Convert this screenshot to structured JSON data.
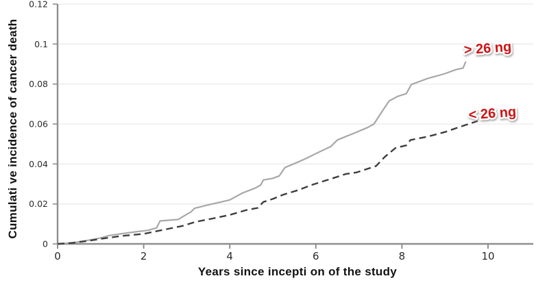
{
  "colors": {
    "background": "#ffffff",
    "grid": "#ededed",
    "axis": "#8e8e8e",
    "tick_text": "#2b2b2b",
    "title_text": "#111111",
    "annotation_red": "#cc1111",
    "series_gray": "#a7a7a7",
    "series_dark": "#3d3d3d"
  },
  "chart_data": {
    "type": "line",
    "title": "",
    "xlabel": "Years since incepti on of the study",
    "ylabel": "Cumulati ve incidence of cancer death",
    "xlim": [
      0,
      11.05
    ],
    "ylim": [
      0,
      0.12
    ],
    "xticks": [
      0,
      2,
      4,
      6,
      8,
      10
    ],
    "xtick_labels": [
      "0",
      "2",
      "4",
      "6",
      "8",
      "10"
    ],
    "yticks": [
      0,
      0.02,
      0.04,
      0.06,
      0.08,
      0.1,
      0.12
    ],
    "ytick_labels": [
      "0",
      "0.02",
      "0.04",
      "0.06",
      "0.08",
      "0.1",
      "0.12"
    ],
    "grid": "horizontal-only",
    "legend_position": "end-of-line-annotations",
    "series": [
      {
        "name": "> 26 ng",
        "style": "solid",
        "color": "#a7a7a7",
        "label_color": "#cc1111",
        "annotation": {
          "x": 10.0,
          "y": 0.0956,
          "rotate": -4
        },
        "points": [
          [
            0,
            0
          ],
          [
            0.35,
            0.0005
          ],
          [
            0.7,
            0.0018
          ],
          [
            1.0,
            0.003
          ],
          [
            1.2,
            0.0042
          ],
          [
            1.45,
            0.005
          ],
          [
            1.8,
            0.006
          ],
          [
            2.1,
            0.0068
          ],
          [
            2.3,
            0.008
          ],
          [
            2.38,
            0.0115
          ],
          [
            2.8,
            0.0122
          ],
          [
            3.0,
            0.0148
          ],
          [
            3.1,
            0.016
          ],
          [
            3.18,
            0.0178
          ],
          [
            3.5,
            0.0195
          ],
          [
            3.8,
            0.021
          ],
          [
            4.0,
            0.022
          ],
          [
            4.3,
            0.0255
          ],
          [
            4.6,
            0.028
          ],
          [
            4.72,
            0.0295
          ],
          [
            4.78,
            0.032
          ],
          [
            5.0,
            0.0328
          ],
          [
            5.15,
            0.034
          ],
          [
            5.28,
            0.0382
          ],
          [
            5.5,
            0.0402
          ],
          [
            5.75,
            0.0425
          ],
          [
            6.0,
            0.0452
          ],
          [
            6.35,
            0.0488
          ],
          [
            6.5,
            0.052
          ],
          [
            6.9,
            0.0555
          ],
          [
            7.2,
            0.0582
          ],
          [
            7.35,
            0.06
          ],
          [
            7.5,
            0.065
          ],
          [
            7.7,
            0.0715
          ],
          [
            7.9,
            0.0738
          ],
          [
            8.1,
            0.0752
          ],
          [
            8.22,
            0.0798
          ],
          [
            8.6,
            0.0828
          ],
          [
            9.0,
            0.0852
          ],
          [
            9.25,
            0.0872
          ],
          [
            9.42,
            0.088
          ],
          [
            9.48,
            0.091
          ]
        ]
      },
      {
        "name": "< 26 ng",
        "style": "dashed",
        "color": "#3d3d3d",
        "label_color": "#cc1111",
        "annotation": {
          "x": 10.11,
          "y": 0.0631,
          "rotate": -4
        },
        "points": [
          [
            0,
            0
          ],
          [
            0.35,
            0.0005
          ],
          [
            0.7,
            0.0015
          ],
          [
            1.0,
            0.0025
          ],
          [
            1.5,
            0.004
          ],
          [
            2.0,
            0.005
          ],
          [
            2.4,
            0.0068
          ],
          [
            2.9,
            0.009
          ],
          [
            3.2,
            0.011
          ],
          [
            3.6,
            0.0127
          ],
          [
            4.0,
            0.0145
          ],
          [
            4.4,
            0.017
          ],
          [
            4.65,
            0.018
          ],
          [
            4.78,
            0.021
          ],
          [
            5.0,
            0.0225
          ],
          [
            5.25,
            0.0247
          ],
          [
            5.6,
            0.027
          ],
          [
            5.9,
            0.0295
          ],
          [
            6.3,
            0.0322
          ],
          [
            6.7,
            0.035
          ],
          [
            6.95,
            0.0358
          ],
          [
            7.4,
            0.039
          ],
          [
            7.6,
            0.0435
          ],
          [
            7.85,
            0.048
          ],
          [
            8.1,
            0.0493
          ],
          [
            8.2,
            0.052
          ],
          [
            8.6,
            0.0537
          ],
          [
            9.0,
            0.056
          ],
          [
            9.3,
            0.0582
          ],
          [
            9.76,
            0.0615
          ]
        ]
      }
    ]
  }
}
